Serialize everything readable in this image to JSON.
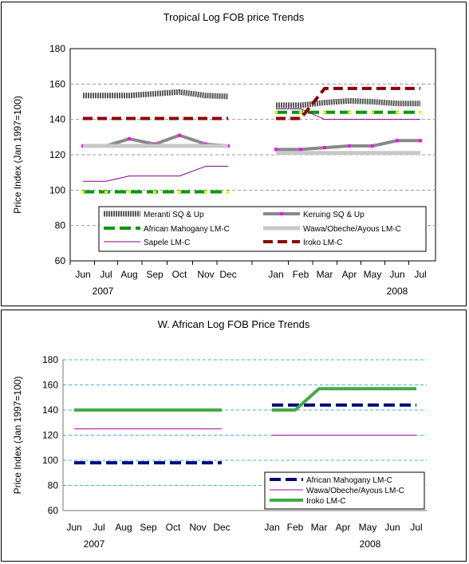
{
  "chart_data": [
    {
      "type": "line",
      "title": "Tropical Log FOB price Trends",
      "xlabel": "",
      "ylabel": "Price Index (Jan 1997=100)",
      "ylim": [
        60,
        180
      ],
      "yticks": [
        60,
        80,
        100,
        120,
        140,
        160,
        180
      ],
      "grid": "horizontal dashed",
      "legend_position": "bottom-center, inside plot, two columns",
      "categories": [
        "Jun",
        "Jul",
        "Aug",
        "Sep",
        "Oct",
        "Nov",
        "Dec",
        "Jan",
        "Feb",
        "Mar",
        "Apr",
        "May",
        "Jun",
        "Jul"
      ],
      "year_labels": [
        "2007",
        "2008"
      ],
      "series": [
        {
          "name": "Meranti SQ & Up",
          "color": "#555555",
          "style": "thick-dotted",
          "values": [
            153.5,
            153.5,
            153.5,
            154.5,
            155.5,
            153.5,
            153,
            148,
            148,
            149.5,
            150.5,
            150,
            149,
            149
          ]
        },
        {
          "name": "Keruing SQ & Up",
          "color": "#888888",
          "style": "thick-with-magenta-markers",
          "values": [
            125,
            125,
            129,
            126,
            131,
            126,
            125,
            123,
            123,
            124,
            125,
            125,
            128,
            128
          ]
        },
        {
          "name": "African Mahogany LM-C",
          "color": "#009900",
          "style": "dashed-yellow-markers",
          "values": [
            99,
            99,
            99,
            99,
            99,
            99,
            99,
            144,
            144,
            144,
            144,
            144,
            144,
            144
          ]
        },
        {
          "name": "Wawa/Obeche/Ayous LM-C",
          "color": "#c8c8c8",
          "style": "thick-solid",
          "values": [
            125,
            125,
            125,
            125,
            125,
            125,
            125,
            121,
            121,
            121,
            121,
            121,
            121,
            121
          ]
        },
        {
          "name": "Sapele LM-C",
          "color": "#800080",
          "style": "thin-solid",
          "values": [
            105,
            105,
            108,
            108,
            108,
            113.5,
            113.5,
            146,
            146,
            140,
            140,
            140,
            140,
            140
          ]
        },
        {
          "name": "Iroko LM-C",
          "color": "#8b0000",
          "style": "thick-dashed",
          "values": [
            140.5,
            140.5,
            140.5,
            140.5,
            140.5,
            140.5,
            140.5,
            140.5,
            140.5,
            157.5,
            157.5,
            157.5,
            157.5,
            157.5
          ]
        }
      ]
    },
    {
      "type": "line",
      "title": "W. African Log FOB Price Trends",
      "xlabel": "",
      "ylabel": "Price Index (Jan 1997=100)",
      "ylim": [
        60,
        180
      ],
      "yticks": [
        60,
        80,
        100,
        120,
        140,
        160,
        180
      ],
      "grid": "horizontal dashed cyan",
      "legend_position": "bottom-right",
      "categories": [
        "Jun",
        "Jul",
        "Aug",
        "Sep",
        "Oct",
        "Nov",
        "Dec",
        "Jan",
        "Feb",
        "Mar",
        "Apr",
        "May",
        "Jun",
        "Jul"
      ],
      "year_labels": [
        "2007",
        "2008"
      ],
      "series": [
        {
          "name": "African Mahogany LM-C",
          "color": "#000080",
          "style": "thick-dashed",
          "values": [
            98,
            98,
            98,
            98,
            98,
            98,
            98,
            144,
            144,
            144,
            144,
            144,
            144,
            144
          ]
        },
        {
          "name": "Wawa/Obeche/Ayous LM-C",
          "color": "#aa00aa",
          "style": "thin-solid",
          "values": [
            125,
            125,
            125,
            125,
            125,
            125,
            125,
            120,
            120,
            120,
            120,
            120,
            120,
            120
          ]
        },
        {
          "name": "Iroko LM-C",
          "color": "#44aa44",
          "style": "thick-solid",
          "values": [
            140,
            140,
            140,
            140,
            140,
            140,
            140,
            140,
            140,
            157,
            157,
            157,
            157,
            157
          ]
        }
      ]
    }
  ]
}
